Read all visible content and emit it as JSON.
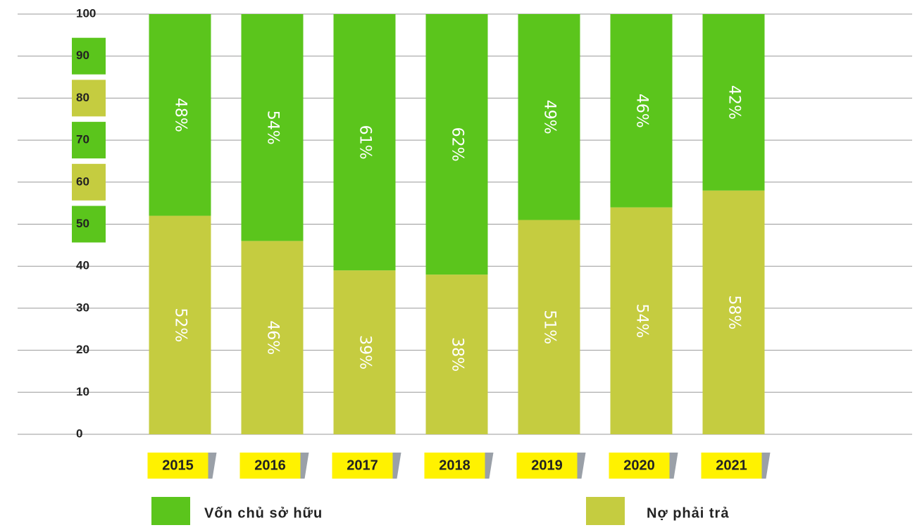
{
  "chart_data": {
    "type": "stacked_bar",
    "categories": [
      "2015",
      "2016",
      "2017",
      "2018",
      "2019",
      "2020",
      "2021"
    ],
    "series": [
      {
        "name": "Nợ phải trả",
        "color": "#c5cc40",
        "values": [
          52,
          46,
          39,
          38,
          51,
          54,
          58
        ],
        "value_labels": [
          "52%",
          "46%",
          "39%",
          "38%",
          "51%",
          "54%",
          "58%"
        ]
      },
      {
        "name": "Vốn chủ sở hữu",
        "color": "#5bc51c",
        "values": [
          48,
          54,
          61,
          62,
          49,
          46,
          42
        ],
        "value_labels": [
          "48%",
          "54%",
          "61%",
          "62%",
          "49%",
          "46%",
          "42%"
        ]
      }
    ],
    "ylim": [
      0,
      100
    ],
    "yticks": [
      0,
      10,
      20,
      30,
      40,
      50,
      60,
      70,
      80,
      90,
      100
    ],
    "grid": true
  }
}
